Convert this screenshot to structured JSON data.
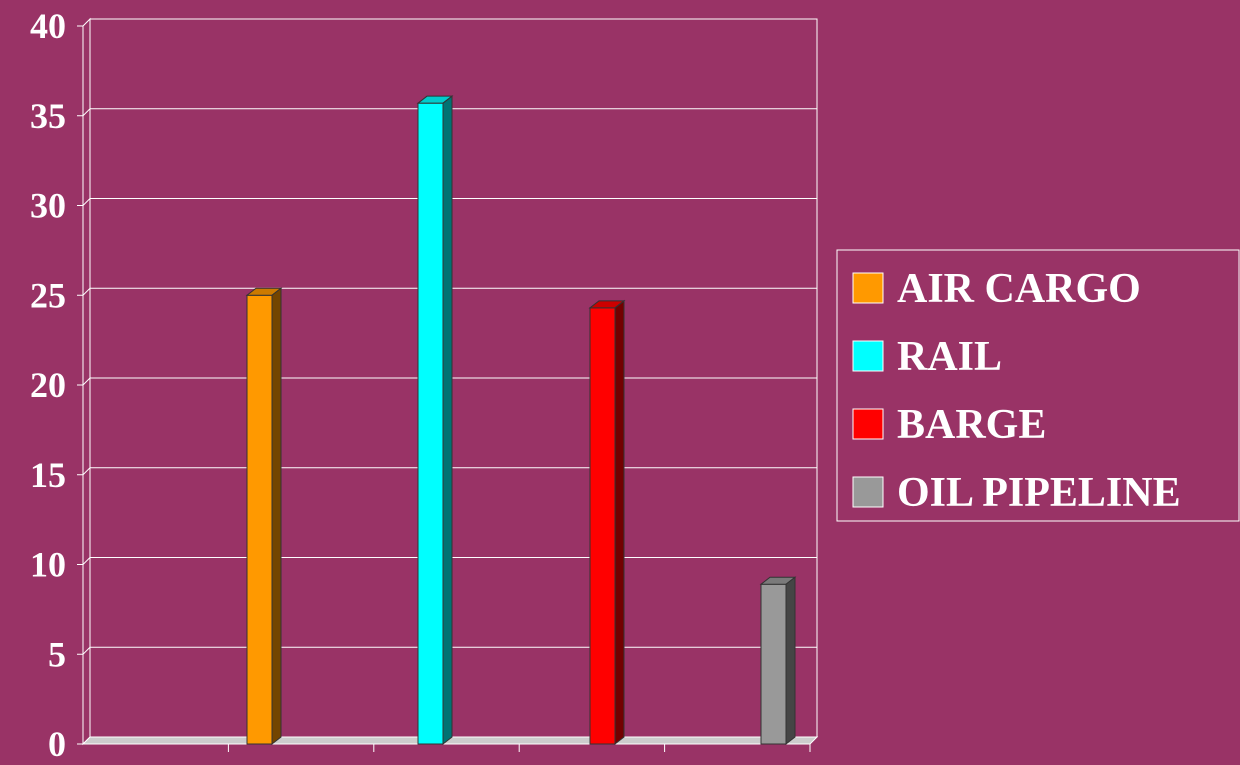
{
  "chart_data": {
    "type": "bar",
    "categories": [
      "AIR CARGO",
      "RAIL",
      "BARGE",
      "OIL PIPELINE"
    ],
    "series": [
      {
        "name": "AIR CARGO",
        "values": [
          25,
          null,
          null,
          null
        ]
      },
      {
        "name": "RAIL",
        "values": [
          null,
          35.7,
          null,
          null
        ]
      },
      {
        "name": "BARGE",
        "values": [
          null,
          null,
          24.3,
          null
        ]
      },
      {
        "name": "OIL PIPELINE",
        "values": [
          null,
          null,
          null,
          8.9
        ]
      }
    ],
    "values": [
      25,
      35.7,
      24.3,
      8.9
    ],
    "colors": [
      "#ff9900",
      "#00ffff",
      "#ff0000",
      "#999999"
    ],
    "title": "",
    "xlabel": "",
    "ylabel": "",
    "ylim": [
      0,
      40
    ],
    "yticks": [
      "0",
      "5",
      "10",
      "15",
      "20",
      "25",
      "30",
      "35",
      "40"
    ],
    "grid": true,
    "legend_position": "right",
    "legend": [
      "AIR CARGO",
      "RAIL",
      "BARGE",
      "OIL PIPELINE"
    ],
    "style": "3d-column",
    "background_color": "#993366"
  }
}
